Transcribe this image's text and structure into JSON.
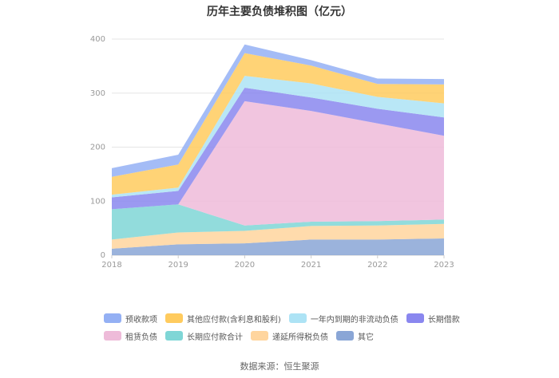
{
  "chart_data": {
    "type": "area",
    "title": "历年主要负债堆积图（亿元）",
    "categories": [
      "2018",
      "2019",
      "2020",
      "2021",
      "2022",
      "2023"
    ],
    "ylim": [
      0,
      400
    ],
    "yticks": [
      "0",
      "100",
      "200",
      "300",
      "400"
    ],
    "grid": true,
    "legend_position": "bottom",
    "series": [
      {
        "name": "其它",
        "color": "#8aa6d6",
        "values": [
          12,
          20,
          22,
          29,
          29,
          31
        ]
      },
      {
        "name": "递延所得税负债",
        "color": "#ffd59e",
        "values": [
          17,
          22,
          23,
          25,
          26,
          27
        ]
      },
      {
        "name": "长期应付款合计",
        "color": "#7fd6d6",
        "values": [
          56,
          52,
          10,
          8,
          8,
          8
        ]
      },
      {
        "name": "租赁负债",
        "color": "#eebbd9",
        "values": [
          0,
          0,
          230,
          205,
          181,
          155
        ]
      },
      {
        "name": "长期借款",
        "color": "#8a87ef",
        "values": [
          22,
          25,
          25,
          25,
          27,
          34
        ]
      },
      {
        "name": "一年内到期的非流动负债",
        "color": "#ade3f5",
        "values": [
          5,
          6,
          22,
          26,
          22,
          26
        ]
      },
      {
        "name": "其他应付款(含利息和股利)",
        "color": "#ffcb5e",
        "values": [
          33,
          43,
          42,
          33,
          24,
          35
        ]
      },
      {
        "name": "预收款项",
        "color": "#94b0f4",
        "values": [
          16,
          18,
          16,
          10,
          10,
          10
        ]
      }
    ]
  },
  "legend_rows": [
    [
      "预收款项",
      "其他应付款(含利息和股利)",
      "一年内到期的非流动负债",
      "长期借款"
    ],
    [
      "租赁负债",
      "长期应付款合计",
      "递延所得税负债",
      "其它"
    ]
  ],
  "source": "数据来源：恒生聚源"
}
